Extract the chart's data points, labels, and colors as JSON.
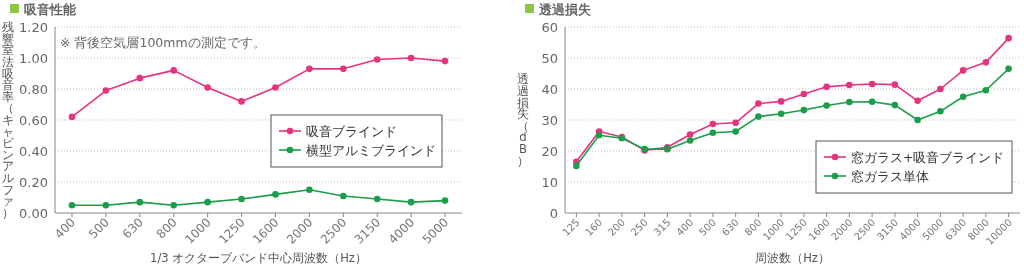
{
  "chart_data": [
    {
      "type": "line",
      "title": "吸音性能",
      "annotations": [
        "※ 背後空気層100mmの測定です。"
      ],
      "xlabel": "1/3 オクターブバンド中心周波数（Hz）",
      "ylabel": "残響室法吸音率（キャビンアルファ）",
      "categories": [
        "400",
        "500",
        "630",
        "800",
        "1000",
        "1250",
        "1600",
        "2000",
        "2500",
        "3150",
        "4000",
        "5000"
      ],
      "series": [
        {
          "name": "吸音ブラインド",
          "color": "#e6337f",
          "values": [
            0.62,
            0.79,
            0.87,
            0.92,
            0.81,
            0.72,
            0.81,
            0.93,
            0.93,
            0.99,
            1.0,
            0.98
          ]
        },
        {
          "name": "横型アルミブラインド",
          "color": "#1a9e4a",
          "values": [
            0.05,
            0.05,
            0.07,
            0.05,
            0.07,
            0.09,
            0.12,
            0.15,
            0.11,
            0.09,
            0.07,
            0.08
          ]
        }
      ],
      "ylim": [
        0,
        1.2
      ],
      "yticks": [
        {
          "value": 0,
          "label": "0.00"
        },
        {
          "value": 0.2,
          "label": "0.20"
        },
        {
          "value": 0.4,
          "label": "0.40"
        },
        {
          "value": 0.6,
          "label": "0.60"
        },
        {
          "value": 0.8,
          "label": "0.80"
        },
        {
          "value": 1.0,
          "label": "1.00"
        },
        {
          "value": 1.2,
          "label": "1.20"
        }
      ],
      "grid": "y",
      "legend": "right",
      "marker": "circle"
    },
    {
      "type": "line",
      "title": "透過損失",
      "xlabel": "周波数（Hz）",
      "ylabel": "透過損失（dB）",
      "categories": [
        "125",
        "160",
        "200",
        "250",
        "315",
        "400",
        "500",
        "630",
        "800",
        "1000",
        "1250",
        "1600",
        "2000",
        "2500",
        "3150",
        "4000",
        "5000",
        "6300",
        "8000",
        "10000"
      ],
      "series": [
        {
          "name": "窓ガラス+吸音ブラインド",
          "color": "#e6337f",
          "values": [
            16.5,
            26.3,
            24.5,
            20.2,
            21.2,
            25.3,
            28.7,
            29.1,
            35.3,
            36.0,
            38.4,
            40.7,
            41.3,
            41.6,
            41.4,
            36.2,
            40.0,
            46.0,
            48.6,
            56.4
          ]
        },
        {
          "name": "窓ガラス単体",
          "color": "#1a9e4a",
          "values": [
            15.2,
            25.1,
            24.1,
            20.6,
            20.6,
            23.4,
            25.9,
            26.3,
            31.1,
            32.0,
            33.2,
            34.7,
            35.8,
            35.9,
            34.8,
            30.0,
            32.8,
            37.5,
            39.6,
            46.5
          ]
        }
      ],
      "ylim": [
        0,
        60
      ],
      "yticks": [
        0,
        10,
        20,
        30,
        40,
        50,
        60
      ],
      "grid": "y",
      "legend": "bottom right",
      "marker": "circle"
    }
  ]
}
